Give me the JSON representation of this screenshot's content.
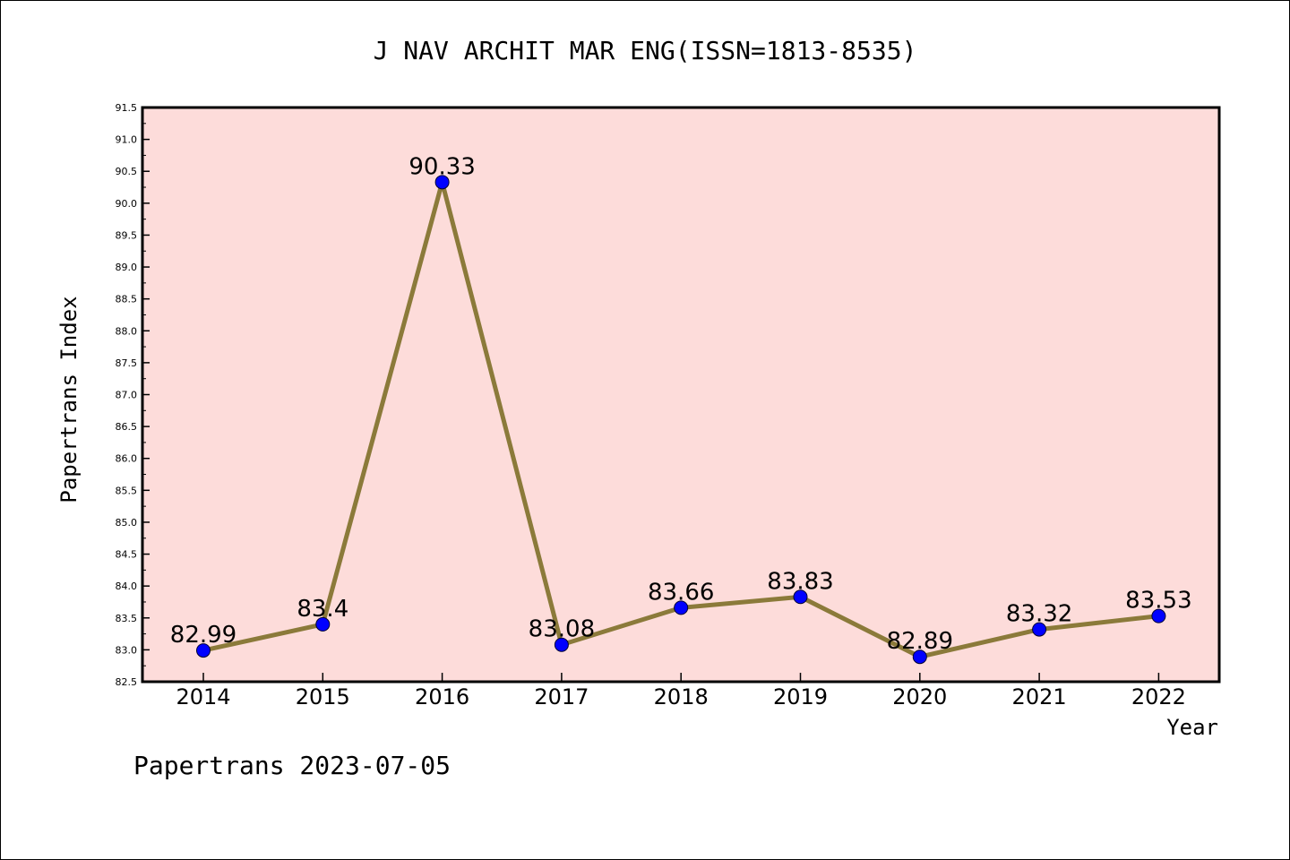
{
  "chart_data": {
    "type": "line",
    "title": "J NAV ARCHIT MAR ENG(ISSN=1813-8535)",
    "xlabel": "Year",
    "ylabel": "Papertrans Index",
    "categories": [
      "2014",
      "2015",
      "2016",
      "2017",
      "2018",
      "2019",
      "2020",
      "2021",
      "2022"
    ],
    "series": [
      {
        "name": "Papertrans Index",
        "values": [
          82.99,
          83.4,
          90.33,
          83.08,
          83.66,
          83.83,
          82.89,
          83.32,
          83.53
        ],
        "labels": [
          "82.99",
          "83.4",
          "90.33",
          "83.08",
          "83.66",
          "83.83",
          "82.89",
          "83.32",
          "83.53"
        ],
        "line_color": "#8b7a3a",
        "marker_color": "#0000ff"
      }
    ],
    "ylim": [
      82.5,
      91.5
    ],
    "yticks": [
      "82.5",
      "83.0",
      "83.5",
      "84.0",
      "84.5",
      "85.0",
      "85.5",
      "86.0",
      "86.5",
      "87.0",
      "87.5",
      "88.0",
      "88.5",
      "89.0",
      "89.5",
      "90.0",
      "90.5",
      "91.0",
      "91.5"
    ],
    "plot_background": "#fddcda",
    "grid": false,
    "legend": "none"
  },
  "footer": "Papertrans 2023-07-05"
}
